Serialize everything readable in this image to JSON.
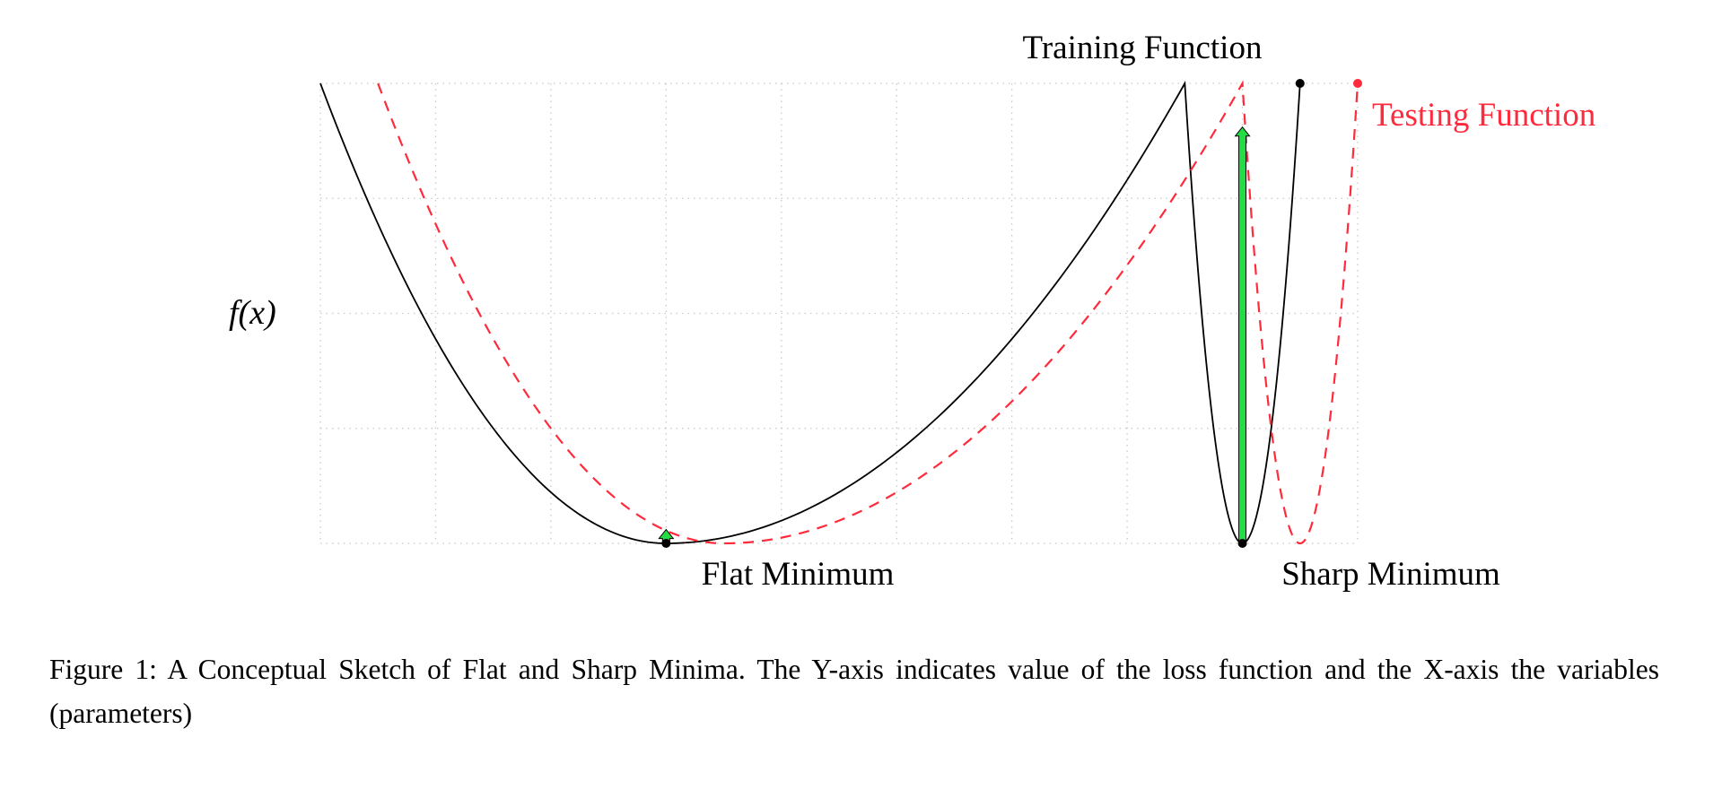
{
  "chart_data": {
    "type": "line",
    "ylabel": "f(x)",
    "xlim": [
      0,
      9
    ],
    "ylim": [
      0,
      4
    ],
    "grid": true,
    "grid_style": "dotted",
    "series": [
      {
        "name": "Training Function",
        "color": "#000000",
        "style": "solid",
        "points": [
          [
            0,
            4
          ],
          [
            3,
            0
          ],
          [
            7.5,
            4
          ],
          [
            8,
            0
          ],
          [
            8.5,
            4
          ]
        ]
      },
      {
        "name": "Testing Function",
        "color": "#ff2a3c",
        "style": "dashed",
        "points": [
          [
            0.5,
            4
          ],
          [
            3.5,
            0
          ],
          [
            8,
            4
          ],
          [
            8.5,
            0
          ],
          [
            9,
            4
          ]
        ]
      }
    ],
    "markers": [
      {
        "x": 3,
        "y": 0,
        "color": "#000000"
      },
      {
        "x": 8,
        "y": 0,
        "color": "#000000"
      },
      {
        "x": 8.5,
        "y": 4,
        "color": "#000000"
      },
      {
        "x": 9,
        "y": 4,
        "color": "#ff2a3c"
      }
    ],
    "arrows": [
      {
        "x": 3,
        "from": 0,
        "to": 0.12,
        "color": "#22dd44"
      },
      {
        "x": 8,
        "from": 0,
        "to": 3.62,
        "color": "#22dd44"
      }
    ],
    "annotations": {
      "flat": "Flat Minimum",
      "sharp": "Sharp Minimum"
    }
  },
  "caption": "Figure 1: A Conceptual Sketch of Flat and Sharp Minima. The Y-axis indicates value of the loss function and the X-axis the variables (parameters)"
}
